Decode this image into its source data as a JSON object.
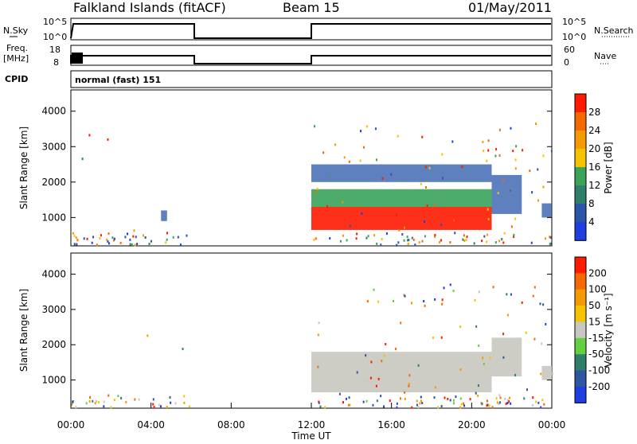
{
  "header": {
    "station": "Falkland Islands (fitACF)",
    "beam": "Beam 15",
    "date": "01/May/2011"
  },
  "strip1": {
    "left_label": "N.Sky",
    "right_label": "N.Search",
    "left_ticks": [
      "10^5",
      "10^0"
    ],
    "right_ticks": [
      "10^5",
      "10^0"
    ]
  },
  "strip2": {
    "left_label_line1": "Freq.",
    "left_label_line2": "[MHz]",
    "right_label": "Nave",
    "left_ticks": [
      "18",
      "8"
    ],
    "right_ticks": [
      "60",
      "0"
    ]
  },
  "cpid": {
    "label": "CPID",
    "value": "normal (fast) 151"
  },
  "colors": {
    "power_scale": [
      "#1f3fe0",
      "#2a55a8",
      "#2f7f6a",
      "#3aa35a",
      "#f4c400",
      "#f59a00",
      "#f56a00",
      "#ff1a00"
    ],
    "velocity_scale": [
      "#1f3fe0",
      "#2d57a0",
      "#2f7f6a",
      "#62d040",
      "#c8c8c0",
      "#f4c400",
      "#f59a00",
      "#f56a00",
      "#ff1a00"
    ],
    "ground_scatter": "#c8c8c0"
  },
  "chart_data": [
    {
      "type": "heatmap",
      "title": "",
      "panel": "power",
      "xlabel": "Time UT",
      "ylabel": "Slant Range [km]",
      "xlim": [
        0,
        24
      ],
      "ylim": [
        200,
        4600
      ],
      "x_ticks": [
        "00:00",
        "04:00",
        "08:00",
        "12:00",
        "16:00",
        "20:00",
        "00:00"
      ],
      "y_ticks": [
        "1000",
        "2000",
        "3000",
        "4000"
      ],
      "colorbar_label": "Power [dB]",
      "colorbar_ticks": [
        "28",
        "24",
        "20",
        "16",
        "12",
        "8",
        "4"
      ],
      "data_gap_hours": [
        6,
        12
      ],
      "regions": [
        {
          "t_start": 12.0,
          "t_end": 21.0,
          "r_min": 650,
          "r_max": 1300,
          "level": "high"
        },
        {
          "t_start": 12.0,
          "t_end": 21.0,
          "r_min": 1300,
          "r_max": 1800,
          "level": "medium"
        },
        {
          "t_start": 12.0,
          "t_end": 21.0,
          "r_min": 2000,
          "r_max": 2500,
          "level": "low"
        },
        {
          "t_start": 21.0,
          "t_end": 22.5,
          "r_min": 1100,
          "r_max": 2200,
          "level": "low"
        },
        {
          "t_start": 23.5,
          "t_end": 24.0,
          "r_min": 1000,
          "r_max": 1400,
          "level": "low"
        },
        {
          "t_start": 4.5,
          "t_end": 4.8,
          "r_min": 900,
          "r_max": 1200,
          "level": "low"
        }
      ]
    },
    {
      "type": "heatmap",
      "title": "",
      "panel": "velocity",
      "xlabel": "Time UT",
      "ylabel": "Slant Range [km]",
      "xlim": [
        0,
        24
      ],
      "ylim": [
        200,
        4600
      ],
      "x_ticks": [
        "00:00",
        "04:00",
        "08:00",
        "12:00",
        "16:00",
        "20:00",
        "00:00"
      ],
      "y_ticks": [
        "1000",
        "2000",
        "3000",
        "4000"
      ],
      "colorbar_label": "Velocity [m s⁻¹]",
      "colorbar_ticks": [
        "200",
        "100",
        "50",
        "15",
        "-15",
        "-50",
        "-100",
        "-200"
      ],
      "data_gap_hours": [
        6,
        12
      ],
      "regions": [
        {
          "t_start": 12.0,
          "t_end": 21.0,
          "r_min": 650,
          "r_max": 1800,
          "level": "ground"
        },
        {
          "t_start": 21.0,
          "t_end": 22.5,
          "r_min": 1100,
          "r_max": 2200,
          "level": "ground"
        },
        {
          "t_start": 23.5,
          "t_end": 24.0,
          "r_min": 1000,
          "r_max": 1400,
          "level": "ground"
        }
      ]
    }
  ]
}
